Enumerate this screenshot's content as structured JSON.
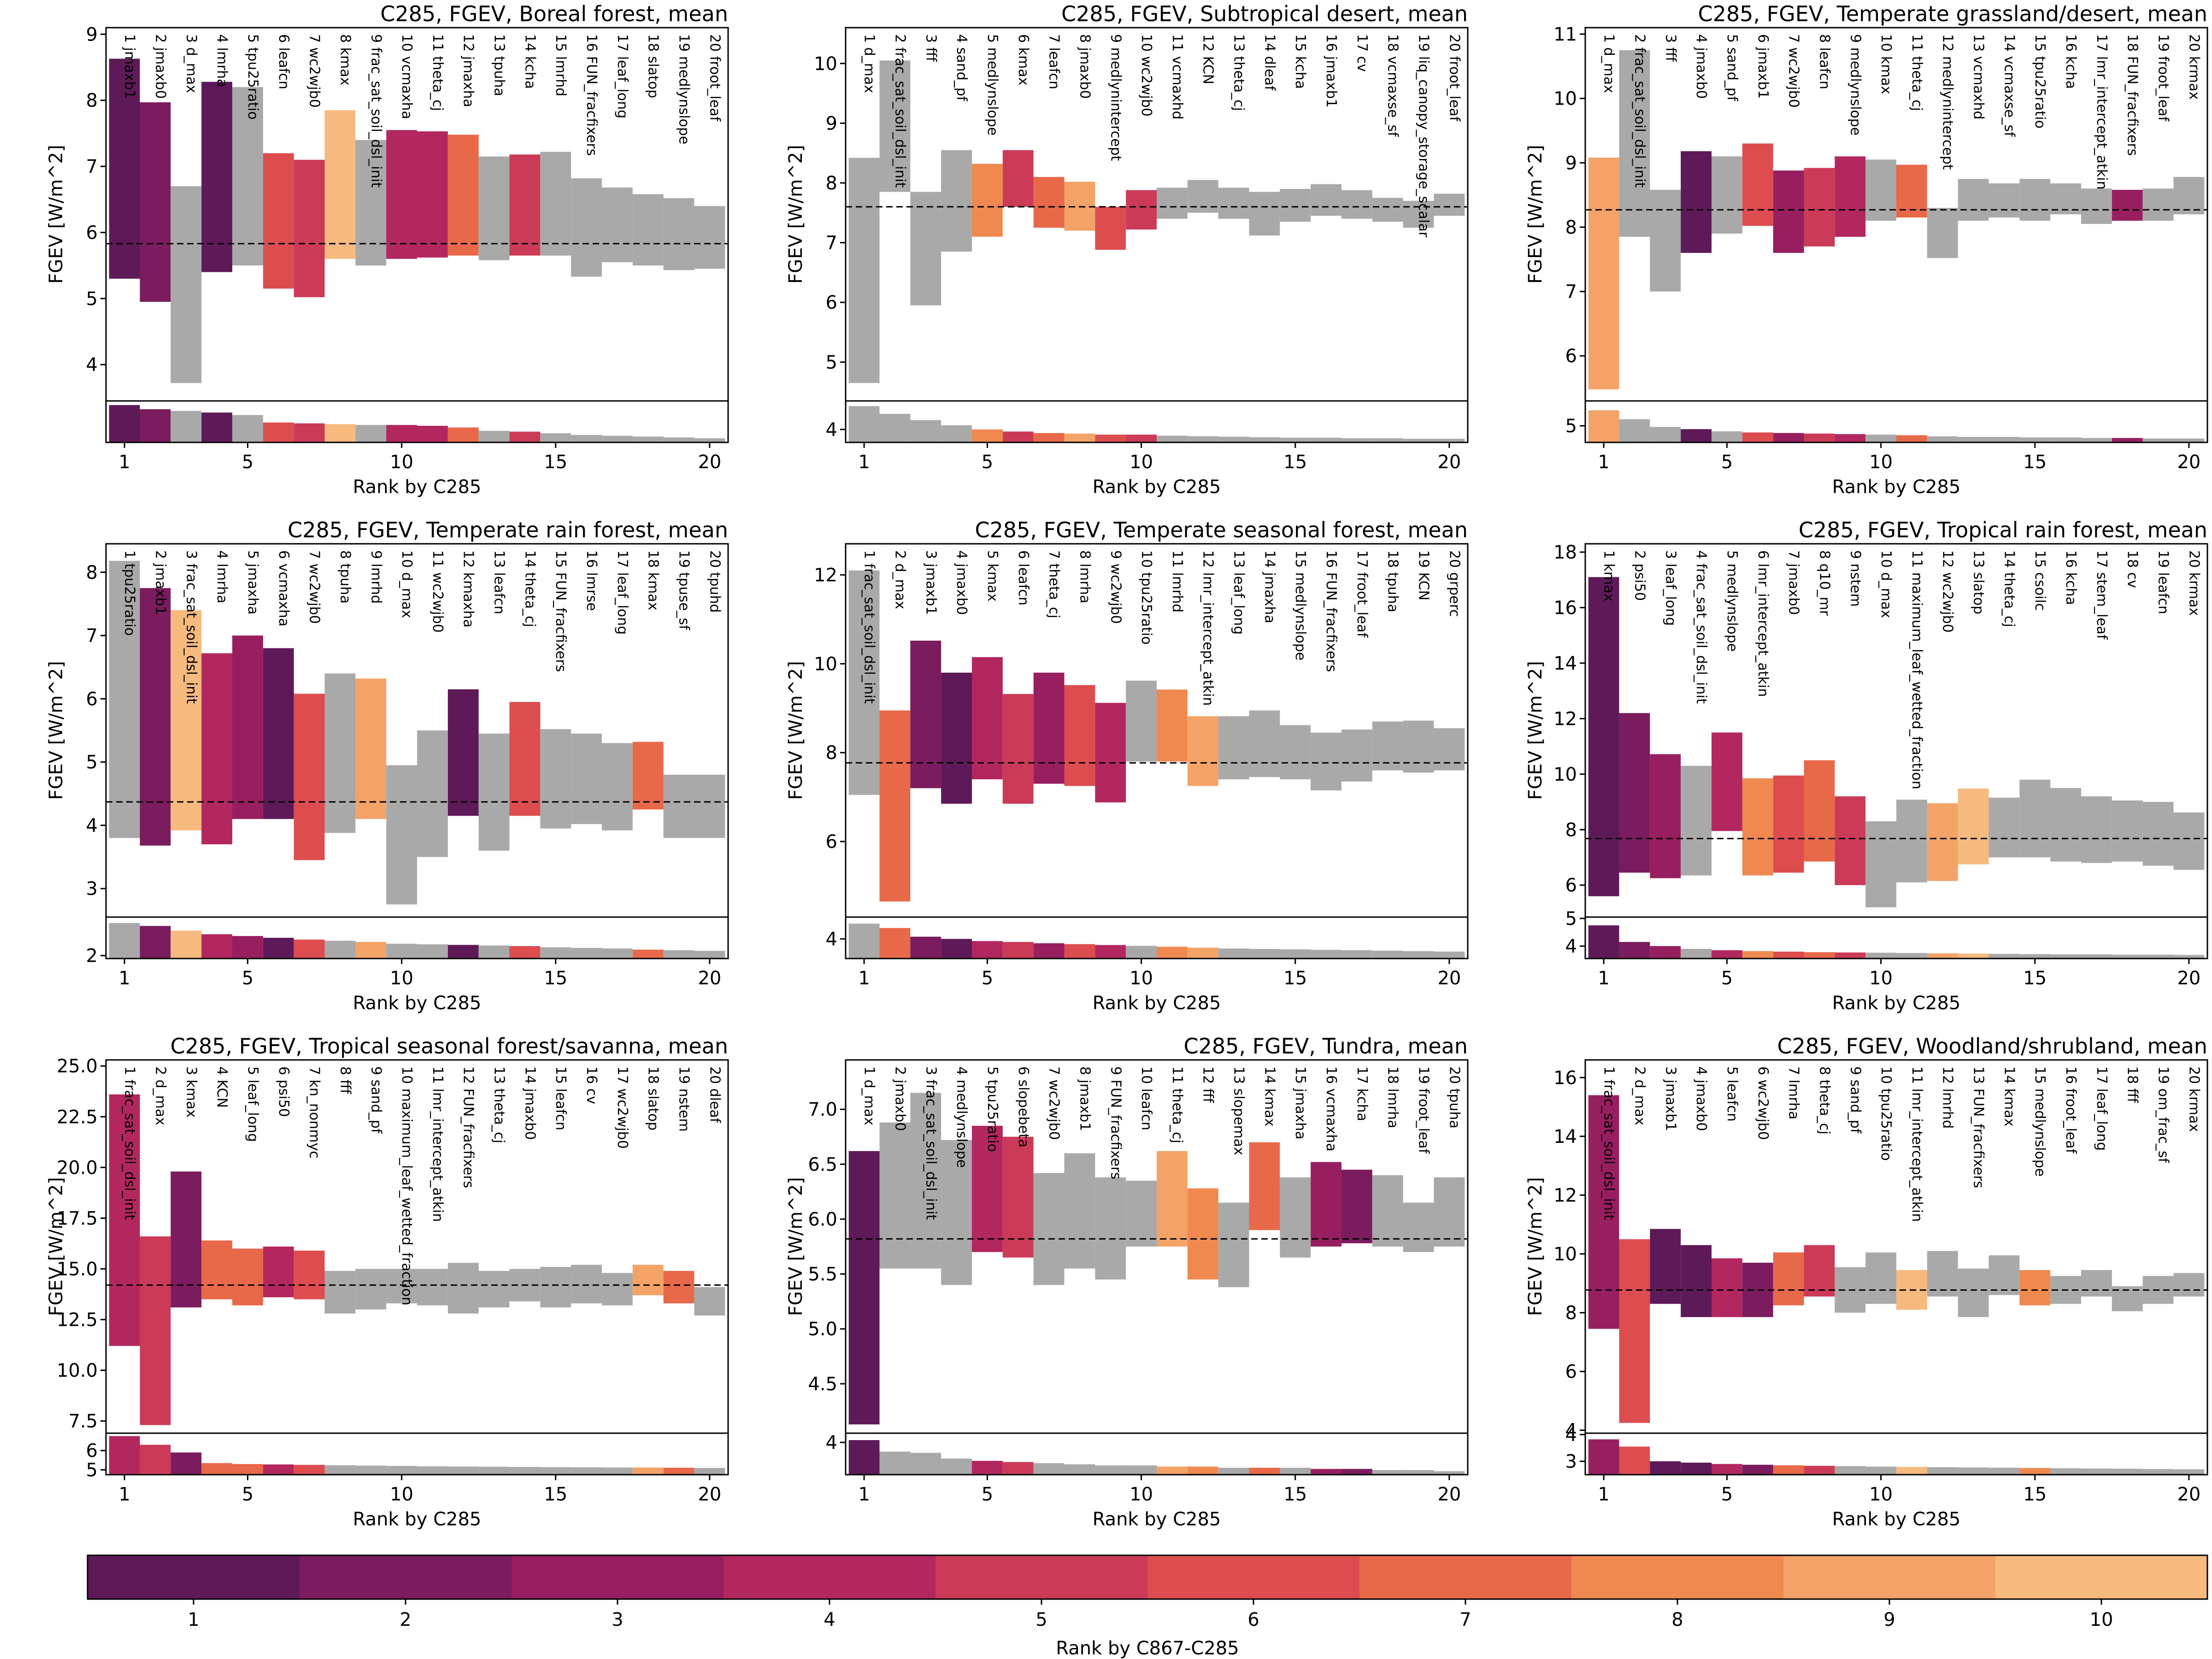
{
  "colorbar": {
    "label": "Rank by C867-C285",
    "ticks": [
      "1",
      "2",
      "3",
      "4",
      "5",
      "6",
      "7",
      "8",
      "9",
      "10"
    ],
    "colors": [
      "#5e1a58",
      "#7a1c5e",
      "#971f60",
      "#b3275f",
      "#cb3b58",
      "#dd4d50",
      "#e8694a",
      "#ef8950",
      "#f3a367",
      "#f6ba7e"
    ]
  },
  "grey_color": "#a9a9a9",
  "chart_data": [
    {
      "type": "bar",
      "title": "C285, FGEV, Boreal forest, mean",
      "xlabel": "Rank by C285",
      "ylabel": "FGEV [W/m^2]",
      "ylim": [
        3.45,
        9.1
      ],
      "yticks": [
        "4",
        "5",
        "6",
        "7",
        "8",
        "9"
      ],
      "mean": 5.83,
      "bottom_ylim": [
        3.1,
        3.6
      ],
      "xticks": [
        "1",
        "5",
        "10",
        "15",
        "20"
      ],
      "labels": [
        "1 jmaxb1",
        "2 jmaxb0",
        "3 d_max",
        "4 lmrha",
        "5 tpu25ratio",
        "6 leafcn",
        "7 wc2wjb0",
        "8 kmax",
        "9 frac_sat_soil_dsl_init",
        "10 vcmaxha",
        "11 theta_cj",
        "12 jmaxha",
        "13 tpuha",
        "14 kcha",
        "15 lmrhd",
        "16 FUN_fracfixers",
        "17 leaf_long",
        "18 slatop",
        "19 medlynslope",
        "20 froot_leaf"
      ],
      "low": [
        5.3,
        4.95,
        3.72,
        5.4,
        5.5,
        5.15,
        5.02,
        5.6,
        5.5,
        5.6,
        5.62,
        5.65,
        5.58,
        5.65,
        5.65,
        5.33,
        5.55,
        5.5,
        5.43,
        5.45
      ],
      "high": [
        8.63,
        7.97,
        6.7,
        8.28,
        8.2,
        7.2,
        7.1,
        7.85,
        7.4,
        7.55,
        7.53,
        7.48,
        7.15,
        7.18,
        7.22,
        6.82,
        6.68,
        6.58,
        6.52,
        6.4
      ],
      "bottom": [
        3.55,
        3.5,
        3.48,
        3.46,
        3.43,
        3.34,
        3.33,
        3.32,
        3.31,
        3.31,
        3.3,
        3.28,
        3.24,
        3.23,
        3.21,
        3.19,
        3.18,
        3.17,
        3.16,
        3.15
      ],
      "colors": [
        1,
        2,
        0,
        1,
        0,
        6,
        5,
        10,
        0,
        4,
        4,
        7,
        0,
        5,
        0,
        0,
        0,
        0,
        0,
        0
      ]
    },
    {
      "type": "bar",
      "title": "C285, FGEV, Subtropical desert, mean",
      "xlabel": "Rank by C285",
      "ylabel": "FGEV [W/m^2]",
      "ylim": [
        4.35,
        10.6
      ],
      "yticks": [
        "5",
        "6",
        "7",
        "8",
        "9",
        "10"
      ],
      "mean": 7.6,
      "bottom_ylim": [
        3.75,
        4.55
      ],
      "xticks": [
        "1",
        "5",
        "10",
        "15",
        "20"
      ],
      "labels": [
        "1 d_max",
        "2 frac_sat_soil_dsl_init",
        "3 fff",
        "4 sand_pf",
        "5 medlynslope",
        "6 kmax",
        "7 leafcn",
        "8 jmaxb0",
        "9 medlynintercept",
        "10 wc2wjb0",
        "11 vcmaxhd",
        "12 KCN",
        "13 theta_cj",
        "14 dleaf",
        "15 kcha",
        "16 jmaxb1",
        "17 cv",
        "18 vcmaxse_sf",
        "19 liq_canopy_storage_scalar",
        "20 froot_leaf"
      ],
      "low": [
        4.65,
        7.85,
        5.95,
        6.85,
        7.1,
        7.6,
        7.25,
        7.2,
        6.88,
        7.22,
        7.4,
        7.5,
        7.4,
        7.12,
        7.35,
        7.45,
        7.4,
        7.35,
        7.25,
        7.45
      ],
      "high": [
        8.42,
        10.05,
        7.85,
        8.55,
        8.32,
        8.55,
        8.1,
        8.02,
        7.6,
        7.88,
        7.92,
        8.05,
        7.92,
        7.85,
        7.9,
        7.98,
        7.88,
        7.75,
        7.7,
        7.82
      ],
      "bottom": [
        4.45,
        4.3,
        4.18,
        4.08,
        4.0,
        3.96,
        3.93,
        3.92,
        3.9,
        3.9,
        3.88,
        3.87,
        3.86,
        3.85,
        3.84,
        3.84,
        3.83,
        3.83,
        3.82,
        3.82
      ],
      "colors": [
        0,
        0,
        0,
        0,
        8,
        5,
        7,
        9,
        6,
        5,
        0,
        0,
        0,
        0,
        0,
        0,
        0,
        0,
        0,
        0
      ]
    },
    {
      "type": "bar",
      "title": "C285, FGEV, Temperate grassland/desert, mean",
      "xlabel": "Rank by C285",
      "ylabel": "FGEV [W/m^2]",
      "ylim": [
        5.3,
        11.1
      ],
      "yticks": [
        "6",
        "7",
        "8",
        "9",
        "10",
        "11"
      ],
      "mean": 8.27,
      "bottom_ylim": [
        4.7,
        5.45
      ],
      "xticks": [
        "1",
        "5",
        "10",
        "15",
        "20"
      ],
      "labels": [
        "1 d_max",
        "2 frac_sat_soil_dsl_init",
        "3 fff",
        "4 jmaxb0",
        "5 sand_pf",
        "6 jmaxb1",
        "7 wc2wjb0",
        "8 leafcn",
        "9 medlynslope",
        "10 kmax",
        "11 theta_cj",
        "12 medlynintercept",
        "13 vcmaxhd",
        "14 vcmaxse_sf",
        "15 tpu25ratio",
        "16 kcha",
        "17 lmr_intercept_atkin",
        "18 FUN_fracfixers",
        "19 froot_leaf",
        "20 krmax"
      ],
      "low": [
        5.48,
        7.85,
        7.0,
        7.6,
        7.9,
        8.02,
        7.6,
        7.7,
        7.85,
        8.1,
        8.15,
        7.52,
        8.1,
        8.15,
        8.1,
        8.2,
        8.05,
        8.1,
        8.1,
        8.2
      ],
      "high": [
        9.08,
        10.75,
        8.58,
        9.18,
        9.1,
        9.3,
        8.88,
        8.92,
        9.1,
        9.05,
        8.97,
        8.3,
        8.75,
        8.68,
        8.75,
        8.68,
        8.6,
        8.58,
        8.6,
        8.78
      ],
      "bottom": [
        5.28,
        5.12,
        4.98,
        4.94,
        4.9,
        4.88,
        4.87,
        4.86,
        4.85,
        4.84,
        4.83,
        4.81,
        4.8,
        4.8,
        4.79,
        4.79,
        4.78,
        4.78,
        4.77,
        4.77
      ],
      "colors": [
        9,
        0,
        0,
        1,
        0,
        6,
        3,
        5,
        4,
        0,
        7,
        0,
        0,
        0,
        0,
        0,
        0,
        3,
        0,
        0
      ]
    },
    {
      "type": "bar",
      "title": "C285, FGEV, Temperate rain forest, mean",
      "xlabel": "Rank by C285",
      "ylabel": "FGEV [W/m^2]",
      "ylim": [
        2.55,
        8.45
      ],
      "yticks": [
        "3",
        "4",
        "5",
        "6",
        "7",
        "8"
      ],
      "mean": 4.37,
      "bottom_ylim": [
        1.95,
        2.65
      ],
      "xticks": [
        "1",
        "5",
        "10",
        "15",
        "20"
      ],
      "labels": [
        "1 tpu25ratio",
        "2 jmaxb1",
        "3 frac_sat_soil_dsl_init",
        "4 lmrha",
        "5 jmaxha",
        "6 vcmaxha",
        "7 wc2wjb0",
        "8 tpuha",
        "9 lmrhd",
        "10 d_max",
        "11 wc2wjb0",
        "12 kmaxha",
        "13 leafcn",
        "14 theta_cj",
        "15 FUN_fracfixers",
        "16 lmrse",
        "17 leaf_long",
        "18 kmax",
        "19 tpuse_sf",
        "20 tpuhd"
      ],
      "low": [
        3.8,
        3.68,
        3.92,
        3.7,
        4.1,
        4.1,
        3.45,
        3.88,
        4.1,
        2.75,
        3.5,
        4.15,
        3.6,
        4.15,
        3.95,
        4.02,
        3.92,
        4.25,
        3.8,
        3.8
      ],
      "high": [
        8.18,
        7.75,
        7.4,
        6.72,
        7.0,
        6.8,
        6.08,
        6.4,
        6.32,
        4.95,
        5.5,
        6.15,
        5.45,
        5.95,
        5.52,
        5.45,
        5.3,
        5.32,
        4.8,
        4.8
      ],
      "bottom": [
        2.55,
        2.5,
        2.42,
        2.36,
        2.33,
        2.3,
        2.27,
        2.25,
        2.23,
        2.2,
        2.19,
        2.18,
        2.17,
        2.16,
        2.14,
        2.13,
        2.12,
        2.1,
        2.09,
        2.08
      ],
      "colors": [
        0,
        2,
        10,
        4,
        3,
        1,
        6,
        0,
        9,
        0,
        0,
        1,
        0,
        6,
        0,
        0,
        0,
        7,
        0,
        0
      ]
    },
    {
      "type": "bar",
      "title": "C285, FGEV, Temperate seasonal forest, mean",
      "xlabel": "Rank by C285",
      "ylabel": "FGEV [W/m^2]",
      "ylim": [
        4.3,
        12.7
      ],
      "yticks": [
        "6",
        "8",
        "10",
        "12"
      ],
      "mean": 7.77,
      "bottom_ylim": [
        3.55,
        4.5
      ],
      "xticks": [
        "1",
        "5",
        "10",
        "15",
        "20"
      ],
      "labels": [
        "1 frac_sat_soil_dsl_init",
        "2 d_max",
        "3 jmaxb1",
        "4 jmaxb0",
        "5 kmax",
        "6 leafcn",
        "7 theta_cj",
        "8 lmrha",
        "9 wc2wjb0",
        "10 tpu25ratio",
        "11 lmrhd",
        "12 lmr_intercept_atkin",
        "13 leaf_long",
        "14 jmaxha",
        "15 medlynslope",
        "16 FUN_fracfixers",
        "17 froot_leaf",
        "18 tpuha",
        "19 KCN",
        "20 grperc"
      ],
      "low": [
        7.05,
        4.65,
        7.2,
        6.85,
        7.4,
        6.85,
        7.3,
        7.25,
        6.88,
        7.8,
        7.8,
        7.25,
        7.4,
        7.45,
        7.4,
        7.15,
        7.35,
        7.6,
        7.55,
        7.6
      ],
      "high": [
        12.1,
        8.95,
        10.52,
        9.8,
        10.15,
        9.32,
        9.8,
        9.52,
        9.12,
        9.62,
        9.42,
        8.82,
        8.82,
        8.95,
        8.62,
        8.45,
        8.52,
        8.7,
        8.72,
        8.55
      ],
      "bottom": [
        4.35,
        4.25,
        4.05,
        4.0,
        3.95,
        3.93,
        3.9,
        3.88,
        3.86,
        3.84,
        3.82,
        3.8,
        3.78,
        3.77,
        3.76,
        3.75,
        3.74,
        3.73,
        3.72,
        3.71
      ],
      "colors": [
        0,
        7,
        2,
        1,
        4,
        5,
        3,
        6,
        4,
        0,
        8,
        9,
        0,
        0,
        0,
        0,
        0,
        0,
        0,
        0
      ]
    },
    {
      "type": "bar",
      "title": "C285, FGEV, Tropical rain forest, mean",
      "xlabel": "Rank by C285",
      "ylabel": "FGEV [W/m^2]",
      "ylim": [
        4.85,
        18.3
      ],
      "yticks": [
        "6",
        "8",
        "10",
        "12",
        "14",
        "16",
        "18"
      ],
      "mean": 7.68,
      "bottom_ylim": [
        3.55,
        5.05
      ],
      "xticks": [
        "1",
        "5",
        "10",
        "15",
        "20"
      ],
      "labels": [
        "1 kmax",
        "2 psi50",
        "3 leaf_long",
        "4 frac_sat_soil_dsl_init",
        "5 medlynslope",
        "6 lmr_intercept_atkin",
        "7 jmaxb0",
        "8 q10_mr",
        "9 nstem",
        "10 d_max",
        "11 maximum_leaf_wetted_fraction",
        "12 wc2wjb0",
        "13 slatop",
        "14 theta_cj",
        "15 csoilc",
        "16 kcha",
        "17 stem_leaf",
        "18 cv",
        "19 leafcn",
        "20 krmax"
      ],
      "low": [
        5.6,
        6.45,
        6.25,
        6.35,
        7.95,
        6.35,
        6.45,
        6.85,
        6.0,
        5.2,
        6.1,
        6.15,
        6.75,
        7.0,
        7.0,
        6.85,
        6.8,
        6.85,
        6.7,
        6.55
      ],
      "high": [
        17.1,
        12.2,
        10.72,
        10.3,
        11.5,
        9.85,
        9.95,
        10.5,
        9.2,
        8.3,
        9.08,
        8.95,
        9.48,
        9.15,
        9.8,
        9.5,
        9.2,
        9.05,
        9.0,
        8.62
      ],
      "bottom": [
        4.75,
        4.15,
        4.0,
        3.9,
        3.85,
        3.82,
        3.8,
        3.78,
        3.77,
        3.76,
        3.75,
        3.74,
        3.73,
        3.72,
        3.71,
        3.7,
        3.7,
        3.69,
        3.69,
        3.68
      ],
      "colors": [
        1,
        2,
        3,
        0,
        4,
        8,
        6,
        7,
        5,
        0,
        0,
        9,
        10,
        0,
        0,
        0,
        0,
        0,
        0,
        0
      ]
    },
    {
      "type": "bar",
      "title": "C285, FGEV, Tropical seasonal forest/savanna, mean",
      "xlabel": "Rank by C285",
      "ylabel": "FGEV [W/m^2]",
      "ylim": [
        6.9,
        25.3
      ],
      "yticks": [
        "7.5",
        "10.0",
        "12.5",
        "15.0",
        "17.5",
        "20.0",
        "22.5",
        "25.0"
      ],
      "mean": 14.2,
      "bottom_ylim": [
        4.75,
        6.9
      ],
      "xticks": [
        "1",
        "5",
        "10",
        "15",
        "20"
      ],
      "labels": [
        "1 frac_sat_soil_dsl_init",
        "2 d_max",
        "3 kmax",
        "4 KCN",
        "5 leaf_long",
        "6 psi50",
        "7 kn_nonmyc",
        "8 fff",
        "9 sand_pf",
        "10 maximum_leaf_wetted_fraction",
        "11 lmr_intercept_atkin",
        "12 FUN_fracfixers",
        "13 theta_cj",
        "14 jmaxb0",
        "15 leafcn",
        "16 cv",
        "17 wc2wjb0",
        "18 slatop",
        "19 nstem",
        "20 dleaf"
      ],
      "low": [
        11.2,
        7.3,
        13.1,
        13.5,
        13.2,
        13.6,
        13.5,
        12.8,
        13.0,
        13.3,
        13.2,
        12.8,
        13.1,
        13.4,
        13.1,
        13.3,
        13.2,
        13.7,
        13.3,
        12.7
      ],
      "high": [
        23.6,
        16.6,
        19.8,
        16.4,
        16.0,
        16.1,
        15.9,
        14.9,
        15.0,
        15.0,
        15.0,
        15.3,
        14.9,
        15.0,
        15.1,
        15.2,
        14.8,
        15.2,
        14.9,
        14.1
      ],
      "bottom": [
        6.75,
        6.3,
        5.9,
        5.35,
        5.3,
        5.28,
        5.26,
        5.24,
        5.22,
        5.2,
        5.18,
        5.17,
        5.16,
        5.15,
        5.14,
        5.13,
        5.12,
        5.12,
        5.11,
        5.1
      ],
      "colors": [
        4,
        5,
        2,
        7,
        7,
        4,
        6,
        0,
        0,
        0,
        0,
        0,
        0,
        0,
        0,
        0,
        0,
        9,
        7,
        0
      ]
    },
    {
      "type": "bar",
      "title": "C285, FGEV, Tundra, mean",
      "xlabel": "Rank by C285",
      "ylabel": "FGEV [W/m^2]",
      "ylim": [
        4.05,
        7.45
      ],
      "yticks": [
        "4.5",
        "5.0",
        "5.5",
        "6.0",
        "6.5",
        "7.0"
      ],
      "mean": 5.82,
      "bottom_ylim": [
        3.72,
        4.08
      ],
      "xticks": [
        "1",
        "5",
        "10",
        "15",
        "20"
      ],
      "labels": [
        "1 d_max",
        "2 jmaxb0",
        "3 frac_sat_soil_dsl_init",
        "4 medlynslope",
        "5 tpu25ratio",
        "6 slopebeta",
        "7 wc2wjb0",
        "8 jmaxb1",
        "9 FUN_fracfixers",
        "10 leafcn",
        "11 theta_cj",
        "12 fff",
        "13 slopemax",
        "14 kmax",
        "15 jmaxha",
        "16 vcmaxha",
        "17 kcha",
        "18 lmrha",
        "19 froot_leaf",
        "20 tpuha"
      ],
      "low": [
        4.13,
        5.55,
        5.55,
        5.4,
        5.7,
        5.65,
        5.4,
        5.55,
        5.45,
        5.75,
        5.75,
        5.45,
        5.38,
        5.9,
        5.65,
        5.75,
        5.78,
        5.75,
        5.7,
        5.75
      ],
      "high": [
        6.62,
        6.88,
        7.15,
        6.72,
        6.85,
        6.75,
        6.42,
        6.6,
        6.38,
        6.35,
        6.62,
        6.28,
        6.15,
        6.7,
        6.38,
        6.52,
        6.45,
        6.4,
        6.15,
        6.38
      ],
      "bottom": [
        4.02,
        3.92,
        3.91,
        3.86,
        3.84,
        3.83,
        3.82,
        3.81,
        3.8,
        3.8,
        3.79,
        3.79,
        3.78,
        3.78,
        3.78,
        3.77,
        3.77,
        3.76,
        3.76,
        3.75
      ],
      "colors": [
        1,
        0,
        0,
        0,
        4,
        5,
        0,
        0,
        0,
        0,
        9,
        8,
        0,
        7,
        0,
        3,
        2,
        0,
        0,
        0
      ]
    },
    {
      "type": "bar",
      "title": "C285, FGEV, Woodland/shrubland, mean",
      "xlabel": "Rank by C285",
      "ylabel": "FGEV [W/m^2]",
      "ylim": [
        3.9,
        16.6
      ],
      "yticks": [
        "4",
        "6",
        "8",
        "10",
        "12",
        "14",
        "16"
      ],
      "mean": 8.77,
      "bottom_ylim": [
        2.5,
        4.05
      ],
      "xticks": [
        "1",
        "5",
        "10",
        "15",
        "20"
      ],
      "labels": [
        "1 frac_sat_soil_dsl_init",
        "2 d_max",
        "3 jmaxb1",
        "4 jmaxb0",
        "5 leafcn",
        "6 wc2wjb0",
        "7 lmrha",
        "8 theta_cj",
        "9 sand_pf",
        "10 tpu25ratio",
        "11 lmr_intercept_atkin",
        "12 lmrhd",
        "13 FUN_fracfixers",
        "14 kmax",
        "15 medlynslope",
        "16 froot_leaf",
        "17 leaf_long",
        "18 fff",
        "19 om_frac_sf",
        "20 krmax"
      ],
      "low": [
        7.45,
        4.25,
        8.3,
        7.85,
        7.85,
        7.85,
        8.25,
        8.55,
        8.0,
        8.3,
        8.1,
        8.55,
        7.85,
        8.6,
        8.25,
        8.3,
        8.55,
        8.05,
        8.3,
        8.55
      ],
      "high": [
        15.4,
        10.5,
        10.85,
        10.3,
        9.85,
        9.7,
        10.05,
        10.3,
        9.55,
        10.05,
        9.45,
        10.1,
        9.5,
        9.95,
        9.45,
        9.25,
        9.45,
        8.9,
        9.25,
        9.35
      ],
      "bottom": [
        3.82,
        3.55,
        3.0,
        2.95,
        2.9,
        2.87,
        2.85,
        2.83,
        2.82,
        2.8,
        2.79,
        2.78,
        2.77,
        2.76,
        2.75,
        2.74,
        2.73,
        2.72,
        2.71,
        2.7
      ],
      "colors": [
        3,
        6,
        1,
        1,
        4,
        2,
        7,
        5,
        0,
        0,
        10,
        0,
        0,
        0,
        8,
        0,
        0,
        0,
        0,
        0
      ]
    }
  ]
}
